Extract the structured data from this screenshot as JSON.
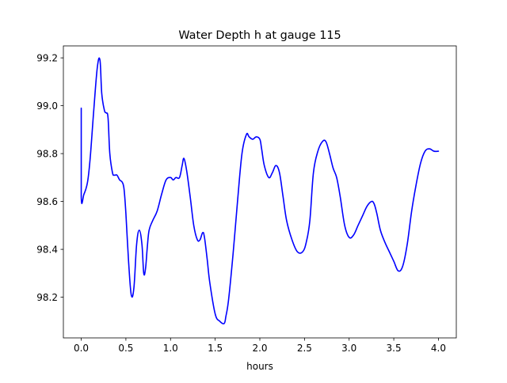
{
  "chart_data": {
    "type": "line",
    "title": "Water Depth h at gauge 115",
    "xlabel": "hours",
    "ylabel": "",
    "xlim": [
      -0.2,
      4.2
    ],
    "ylim": [
      98.03,
      99.25
    ],
    "grid": false,
    "legend": "none",
    "xticks": [
      0.0,
      0.5,
      1.0,
      1.5,
      2.0,
      2.5,
      3.0,
      3.5,
      4.0
    ],
    "xtick_labels": [
      "0.0",
      "0.5",
      "1.0",
      "1.5",
      "2.0",
      "2.5",
      "3.0",
      "3.5",
      "4.0"
    ],
    "yticks": [
      98.2,
      98.4,
      98.6,
      98.8,
      99.0,
      99.2
    ],
    "ytick_labels": [
      "98.2",
      "98.4",
      "98.6",
      "98.8",
      "99.0",
      "99.2"
    ],
    "series": [
      {
        "color": "#0000ff",
        "x": [
          0.0,
          0.0,
          0.03,
          0.07,
          0.1,
          0.14,
          0.18,
          0.21,
          0.23,
          0.26,
          0.28,
          0.3,
          0.32,
          0.35,
          0.37,
          0.4,
          0.43,
          0.46,
          0.48,
          0.5,
          0.53,
          0.56,
          0.59,
          0.62,
          0.65,
          0.68,
          0.7,
          0.72,
          0.74,
          0.76,
          0.8,
          0.85,
          0.9,
          0.95,
          1.0,
          1.03,
          1.06,
          1.1,
          1.13,
          1.15,
          1.18,
          1.22,
          1.26,
          1.3,
          1.33,
          1.36,
          1.38,
          1.41,
          1.44,
          1.5,
          1.55,
          1.6,
          1.62,
          1.65,
          1.7,
          1.75,
          1.8,
          1.85,
          1.88,
          1.92,
          1.96,
          2.0,
          2.02,
          2.05,
          2.1,
          2.14,
          2.18,
          2.22,
          2.26,
          2.3,
          2.36,
          2.42,
          2.48,
          2.52,
          2.56,
          2.6,
          2.65,
          2.7,
          2.74,
          2.78,
          2.82,
          2.86,
          2.9,
          2.95,
          3.0,
          3.05,
          3.1,
          3.15,
          3.2,
          3.25,
          3.28,
          3.31,
          3.35,
          3.4,
          3.45,
          3.5,
          3.55,
          3.6,
          3.65,
          3.7,
          3.75,
          3.8,
          3.85,
          3.9,
          3.95,
          4.0
        ],
        "y": [
          98.99,
          98.62,
          98.63,
          98.68,
          98.78,
          98.98,
          99.16,
          99.19,
          99.05,
          98.98,
          98.97,
          98.95,
          98.8,
          98.72,
          98.71,
          98.71,
          98.69,
          98.68,
          98.65,
          98.55,
          98.35,
          98.21,
          98.24,
          98.42,
          98.48,
          98.42,
          98.3,
          98.32,
          98.41,
          98.48,
          98.52,
          98.56,
          98.63,
          98.69,
          98.7,
          98.69,
          98.7,
          98.7,
          98.75,
          98.78,
          98.73,
          98.62,
          98.5,
          98.44,
          98.44,
          98.47,
          98.45,
          98.36,
          98.26,
          98.13,
          98.1,
          98.09,
          98.12,
          98.19,
          98.38,
          98.6,
          98.8,
          98.88,
          98.87,
          98.86,
          98.87,
          98.86,
          98.82,
          98.75,
          98.7,
          98.72,
          98.75,
          98.72,
          98.62,
          98.52,
          98.44,
          98.39,
          98.39,
          98.43,
          98.52,
          98.72,
          98.81,
          98.85,
          98.85,
          98.8,
          98.74,
          98.7,
          98.62,
          98.5,
          98.45,
          98.46,
          98.5,
          98.54,
          98.58,
          98.6,
          98.59,
          98.55,
          98.48,
          98.43,
          98.39,
          98.35,
          98.31,
          98.33,
          98.42,
          98.56,
          98.67,
          98.76,
          98.81,
          98.82,
          98.81,
          98.81
        ]
      }
    ]
  }
}
